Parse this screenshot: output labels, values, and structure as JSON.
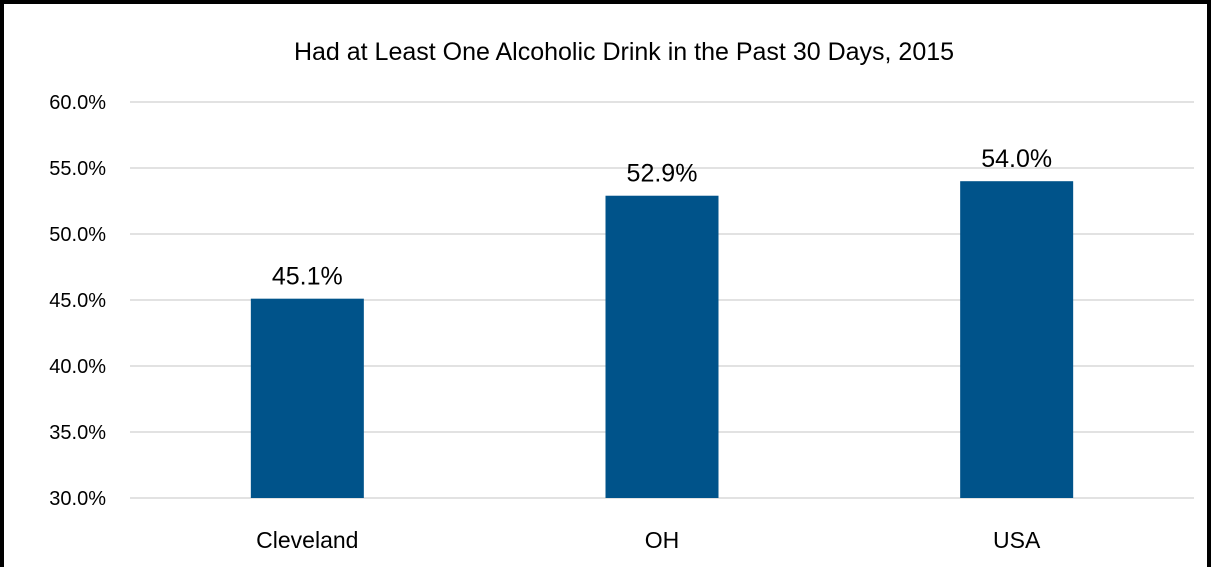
{
  "chart_data": {
    "type": "bar",
    "title": "Had at Least One Alcoholic Drink in the Past 30 Days, 2015",
    "xlabel": "",
    "ylabel": "",
    "categories": [
      "Cleveland",
      "OH",
      "USA"
    ],
    "values": [
      45.1,
      52.9,
      54.0
    ],
    "data_labels": [
      "45.1%",
      "52.9%",
      "54.0%"
    ],
    "ylim": [
      30,
      60
    ],
    "yticks": [
      30,
      35,
      40,
      45,
      50,
      55,
      60
    ],
    "ytick_labels": [
      "30.0%",
      "35.0%",
      "40.0%",
      "45.0%",
      "50.0%",
      "55.0%",
      "60.0%"
    ],
    "grid": true,
    "legend": "none",
    "bar_color": "#00538A",
    "grid_color": "#D9D9D9"
  }
}
